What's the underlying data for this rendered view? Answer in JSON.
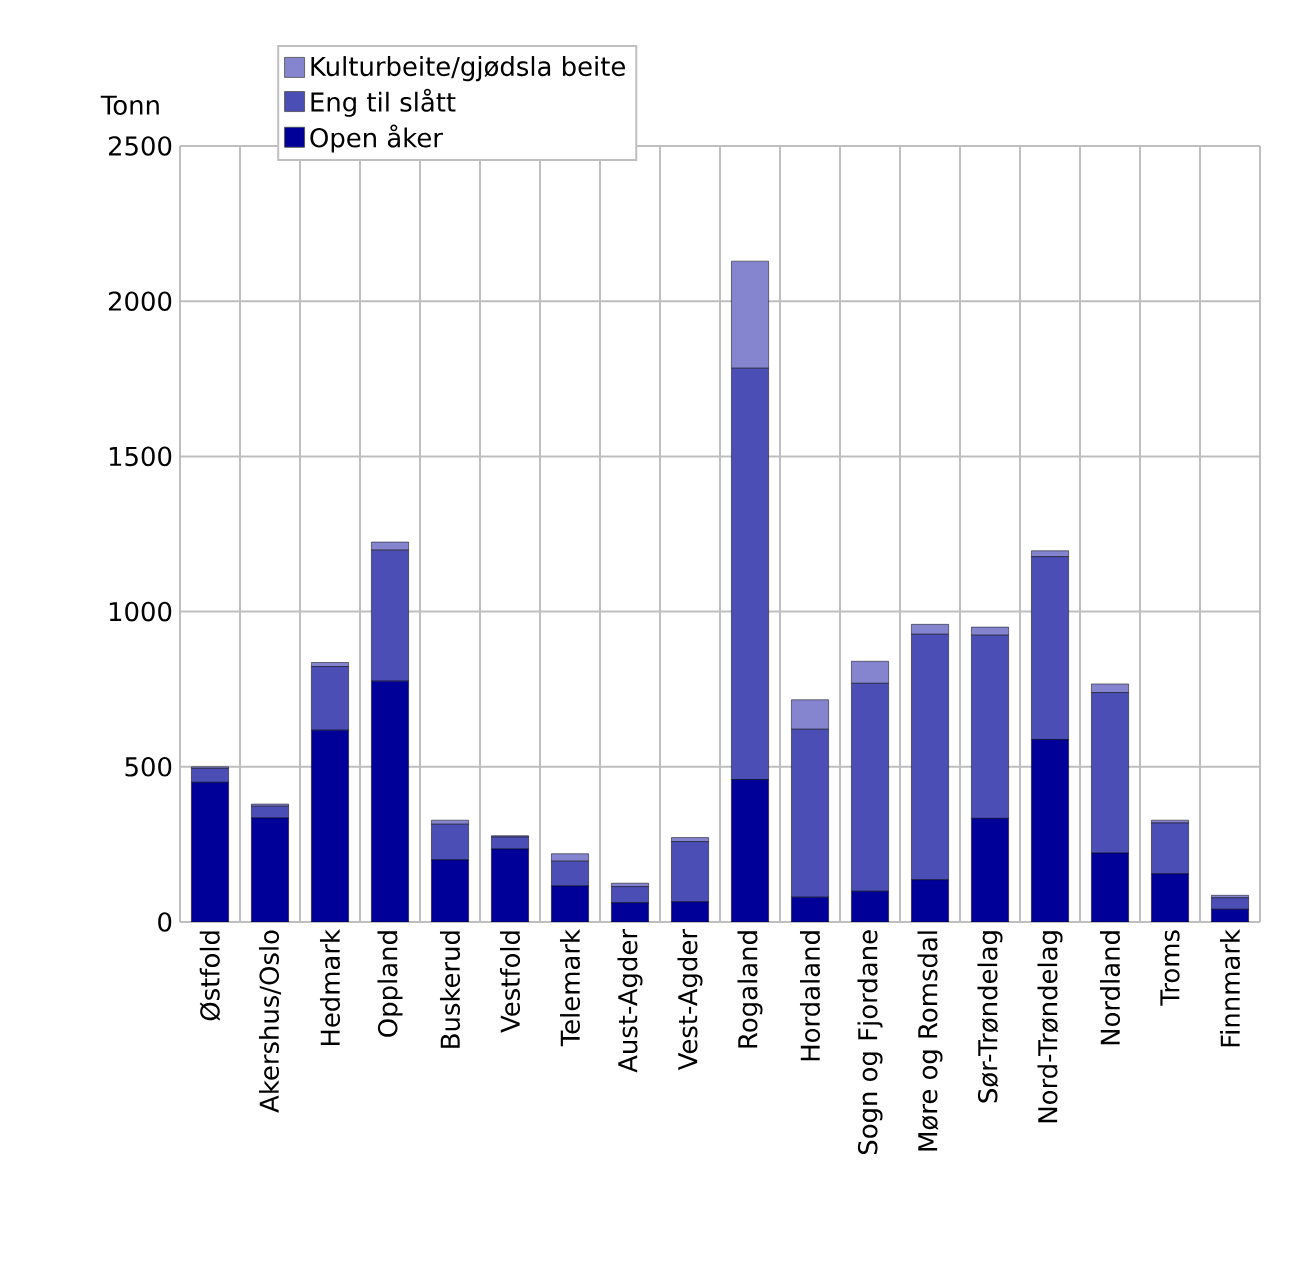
{
  "chart_data": {
    "type": "bar",
    "stacked": true,
    "ylabel": "Tonn",
    "categories": [
      "Østfold",
      "Akershus/Oslo",
      "Hedmark",
      "Oppland",
      "Buskerud",
      "Vestfold",
      "Telemark",
      "Aust-Agder",
      "Vest-Agder",
      "Rogaland",
      "Hordaland",
      "Sogn og Fjordane",
      "Møre og Romsdal",
      "Sør-Trøndelag",
      "Nord-Trøndelag",
      "Nordland",
      "Troms",
      "Finnmark"
    ],
    "series": [
      {
        "name": "Open åker",
        "color": "#000099",
        "values": [
          450,
          335,
          618,
          776,
          200,
          235,
          116,
          62,
          65,
          459,
          80,
          99,
          136,
          334,
          588,
          222,
          155,
          41
        ]
      },
      {
        "name": "Eng til slått",
        "color": "#4b4fb5",
        "values": [
          45,
          38,
          205,
          422,
          115,
          39,
          80,
          52,
          194,
          1325,
          541,
          670,
          791,
          590,
          589,
          517,
          164,
          37
        ]
      },
      {
        "name": "Kulturbeite/gjødsla beite",
        "color": "#8585cf",
        "values": [
          5,
          7,
          13,
          26,
          13,
          4,
          24,
          11,
          13,
          345,
          95,
          71,
          32,
          26,
          19,
          28,
          9,
          8
        ]
      }
    ],
    "ylim": [
      0,
      2500
    ],
    "yticks": [
      0,
      500,
      1000,
      1500,
      2000,
      2500
    ],
    "grid": true,
    "legend": "top left"
  }
}
